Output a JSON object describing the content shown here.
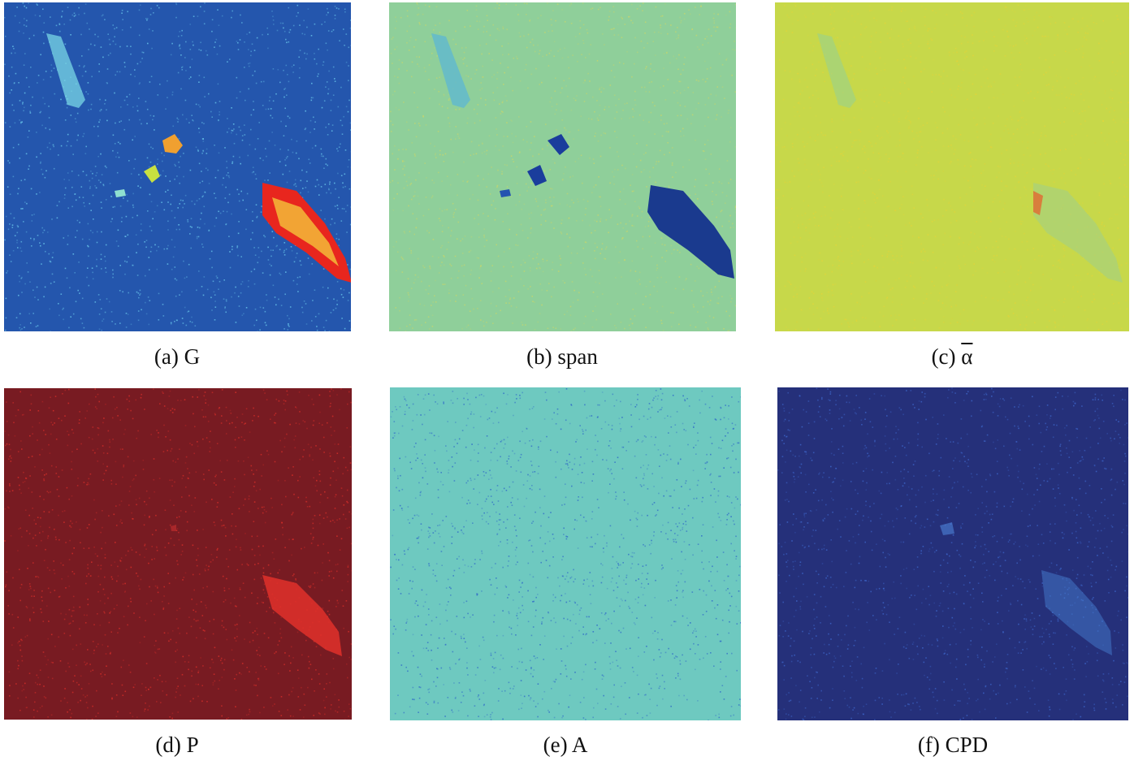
{
  "figure": {
    "panels": [
      {
        "id": "a",
        "caption": "(a) G",
        "colormap": "jet",
        "background": "#2456ad",
        "speckle": "#6fd0f0"
      },
      {
        "id": "b",
        "caption": "(b) span",
        "colormap": "parula",
        "background": "#8fcf9a",
        "speckle": "#c9d66a"
      },
      {
        "id": "c",
        "caption_prefix": "(c) ",
        "caption_symbol": "α",
        "colormap": "jet",
        "background": "#c7d84a",
        "speckle": "#e3d43a"
      },
      {
        "id": "d",
        "caption": "(d) P",
        "colormap": "jet",
        "background": "#781b22",
        "speckle": "#e0302a"
      },
      {
        "id": "e",
        "caption": "(e) A",
        "colormap": "parula",
        "background": "#6ec9c0",
        "speckle": "#2a62c8"
      },
      {
        "id": "f",
        "caption": "(f) CPD",
        "colormap": "parula",
        "background": "#25307a",
        "speckle": "#3f6ad0"
      }
    ]
  }
}
